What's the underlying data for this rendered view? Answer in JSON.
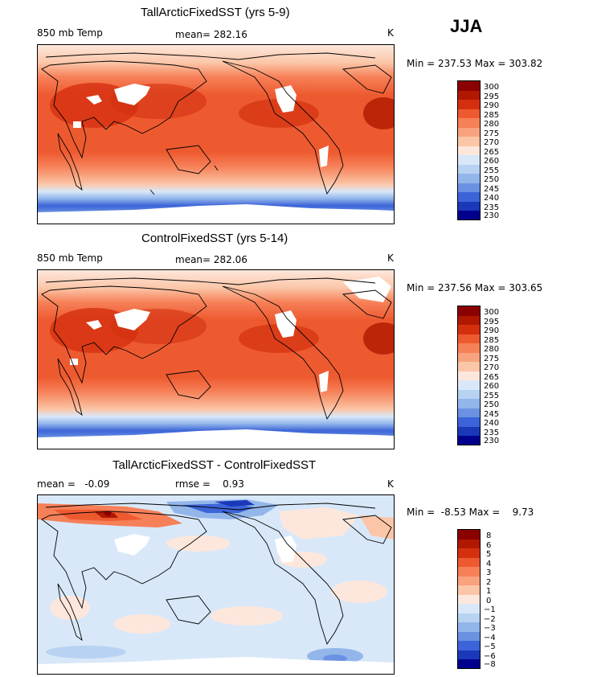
{
  "season": "JJA",
  "panels": [
    {
      "title": "TallArcticFixedSST (yrs 5-9)",
      "variable": "850 mb Temp",
      "stat_text": "mean= 282.16",
      "units": "K",
      "minmax": "Min = 237.53 Max = 303.82",
      "legend": [
        "300",
        "295",
        "290",
        "285",
        "280",
        "275",
        "270",
        "265",
        "260",
        "255",
        "250",
        "245",
        "240",
        "235",
        "230"
      ]
    },
    {
      "title": "ControlFixedSST (yrs 5-14)",
      "variable": "850 mb Temp",
      "stat_text": "mean= 282.06",
      "units": "K",
      "minmax": "Min = 237.56 Max = 303.65",
      "legend": [
        "300",
        "295",
        "290",
        "285",
        "280",
        "275",
        "270",
        "265",
        "260",
        "255",
        "250",
        "245",
        "240",
        "235",
        "230"
      ]
    },
    {
      "title": "TallArcticFixedSST - ControlFixedSST",
      "mean_text": "mean =   -0.09",
      "rmse_text": "rmse =    0.93",
      "units": "K",
      "minmax": "Min =  -8.53 Max =    9.73",
      "legend": [
        "8",
        "6",
        "5",
        "4",
        "3",
        "2",
        "1",
        "0",
        "−1",
        "−2",
        "−3",
        "−4",
        "−5",
        "−6",
        "−8"
      ]
    }
  ],
  "colors": {
    "scale": [
      "#8b0000",
      "#b01800",
      "#d43010",
      "#ee5a30",
      "#f68058",
      "#f8a27e",
      "#fbc6a8",
      "#fde7dc",
      "#d8e8f9",
      "#b8d2f2",
      "#93b6ea",
      "#6b92e2",
      "#3c64d8",
      "#1a38b8",
      "#00008c"
    ],
    "land_mask": "#ffffff"
  }
}
